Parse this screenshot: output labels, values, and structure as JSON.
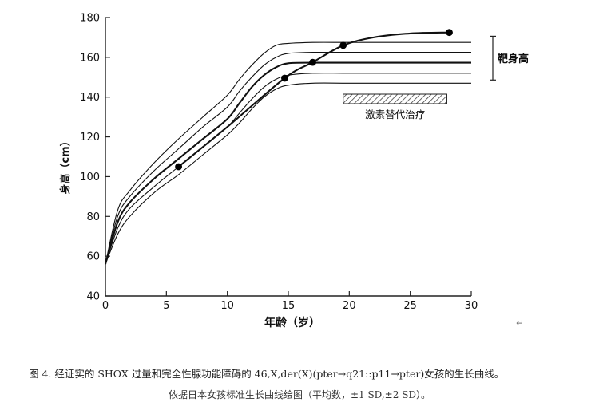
{
  "chart_data": {
    "type": "line",
    "xlabel": "年龄（岁）",
    "ylabel": "身高（cm）",
    "xlim": [
      0,
      30
    ],
    "ylim": [
      40,
      180
    ],
    "x_ticks": [
      0,
      5,
      10,
      15,
      20,
      25,
      30
    ],
    "y_ticks": [
      40,
      60,
      80,
      100,
      120,
      140,
      160,
      180
    ],
    "grid": false,
    "series": [
      {
        "style": "thin",
        "x": [
          0,
          1,
          2,
          4,
          6,
          8,
          10,
          11,
          12,
          13,
          14,
          15,
          17,
          20,
          25,
          30
        ],
        "y": [
          56,
          83,
          93,
          107,
          119,
          130,
          141,
          149,
          156,
          162,
          166,
          167,
          167.5,
          167.5,
          167.5,
          167.5
        ]
      },
      {
        "style": "thin",
        "x": [
          0,
          1,
          2,
          4,
          6,
          8,
          10,
          11,
          12,
          13,
          14,
          15,
          17,
          20,
          25,
          30
        ],
        "y": [
          56,
          80,
          90,
          103,
          114,
          125,
          135,
          143,
          150,
          156,
          160,
          162,
          162.5,
          162.5,
          162.5,
          162.5
        ]
      },
      {
        "style": "mean",
        "x": [
          0,
          1,
          2,
          4,
          6,
          8,
          10,
          11,
          12,
          13,
          14,
          15,
          17,
          20,
          25,
          30
        ],
        "y": [
          56,
          77,
          87,
          99,
          109,
          119,
          129,
          137,
          145,
          151,
          155,
          157,
          157.3,
          157.3,
          157.3,
          157.3
        ]
      },
      {
        "style": "thin",
        "x": [
          0,
          1,
          2,
          4,
          6,
          8,
          10,
          11,
          12,
          13,
          14,
          15,
          17,
          20,
          25,
          30
        ],
        "y": [
          56,
          74,
          84,
          95,
          105,
          115,
          125,
          132,
          139,
          145,
          149,
          151,
          152,
          152,
          152,
          152
        ]
      },
      {
        "style": "thin",
        "x": [
          0,
          1,
          2,
          4,
          6,
          8,
          10,
          11,
          12,
          13,
          14,
          15,
          17,
          20,
          25,
          30
        ],
        "y": [
          56,
          71,
          80,
          92,
          101,
          111,
          121,
          127,
          134,
          140,
          144,
          146,
          147,
          147,
          147,
          147
        ]
      },
      {
        "style": "patient",
        "x": [
          6,
          10,
          14.7,
          17,
          19.5,
          22,
          25,
          28.2
        ],
        "y": [
          105,
          125,
          149.5,
          157.5,
          166,
          170,
          172,
          172.5
        ]
      }
    ],
    "patient_points": [
      {
        "x": 6,
        "y": 105
      },
      {
        "x": 14.7,
        "y": 149.5
      },
      {
        "x": 17,
        "y": 157.5
      },
      {
        "x": 19.5,
        "y": 166
      },
      {
        "x": 28.2,
        "y": 172.5
      }
    ],
    "target_height": {
      "label": "靶身高",
      "x": 30,
      "low": 151,
      "high": 167
    },
    "hrt_bar": {
      "label": "激素替代治疗",
      "x_start": 19.5,
      "x_end": 28,
      "y_low": 141,
      "y_high": 146
    }
  },
  "caption": {
    "main": "图 4. 经证实的 SHOX 过量和完全性腺功能障碍的 46,X,der(X)(pter→q21::p11→pter)女孩的生长曲线。",
    "sub": "依据日本女孩标准生长曲线绘图（平均数，±1 SD,±2 SD）。"
  },
  "return_mark": "↵"
}
